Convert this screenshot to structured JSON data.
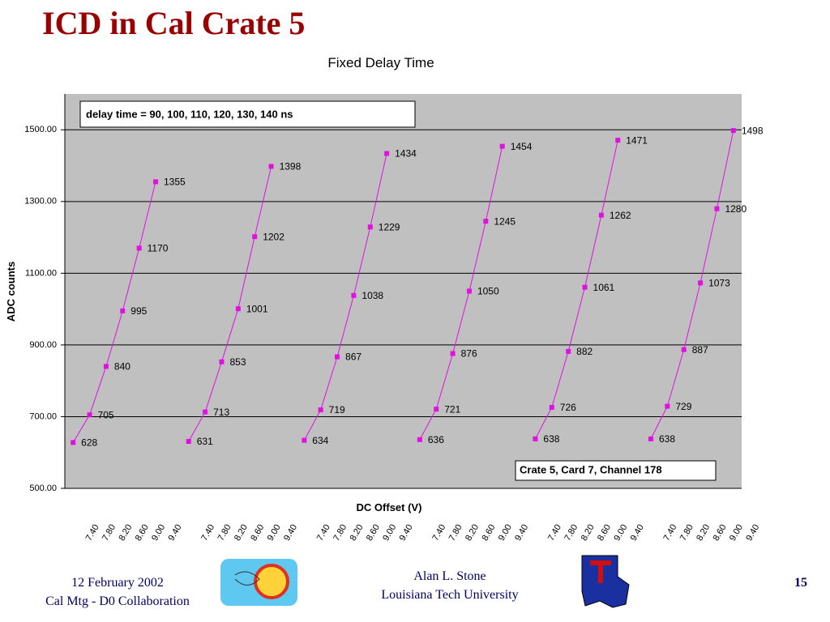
{
  "slide": {
    "title": "ICD in Cal Crate 5",
    "footer": {
      "date": "12 February 2002",
      "meeting": "Cal Mtg - D0 Collaboration",
      "author": "Alan L. Stone",
      "affiliation": "Louisiana Tech University",
      "page": "15"
    }
  },
  "chart_data": {
    "type": "line",
    "title": "Fixed Delay Time",
    "x_label": "DC Offset (V)",
    "y_label": "ADC counts",
    "annotations": [
      "delay time = 90, 100, 110, 120, 130, 140 ns",
      "Crate 5, Card 7, Channel 178"
    ],
    "categories": [
      "7.40",
      "7.80",
      "8.20",
      "8.60",
      "9.00",
      "9.40",
      null,
      "7.40",
      "7.80",
      "8.20",
      "8.60",
      "9.00",
      "9.40",
      null,
      "7.40",
      "7.80",
      "8.20",
      "8.60",
      "9.00",
      "9.40",
      null,
      "7.40",
      "7.80",
      "8.20",
      "8.60",
      "9.00",
      "9.40",
      null,
      "7.40",
      "7.80",
      "8.20",
      "8.60",
      "9.00",
      "9.40",
      null,
      "7.40",
      "7.80",
      "8.20",
      "8.60",
      "9.00",
      "9.40"
    ],
    "values": [
      628,
      705,
      840,
      995,
      1170,
      1355,
      null,
      631,
      713,
      853,
      1001,
      1202,
      1398,
      null,
      634,
      719,
      867,
      1038,
      1229,
      1434,
      null,
      636,
      721,
      876,
      1050,
      1245,
      1454,
      null,
      638,
      726,
      882,
      1061,
      1262,
      1471,
      null,
      638,
      729,
      887,
      1073,
      1280,
      1498
    ],
    "color": "#e010e0",
    "ylim": [
      500,
      1600
    ],
    "yticks": [
      {
        "value": 500,
        "label": "500.00"
      },
      {
        "value": 700,
        "label": "700.00"
      },
      {
        "value": 900,
        "label": "900.00"
      },
      {
        "value": 1100,
        "label": "1100.00"
      },
      {
        "value": 1300,
        "label": "1300.00"
      },
      {
        "value": 1500,
        "label": "1500.00"
      }
    ],
    "grid": true
  }
}
